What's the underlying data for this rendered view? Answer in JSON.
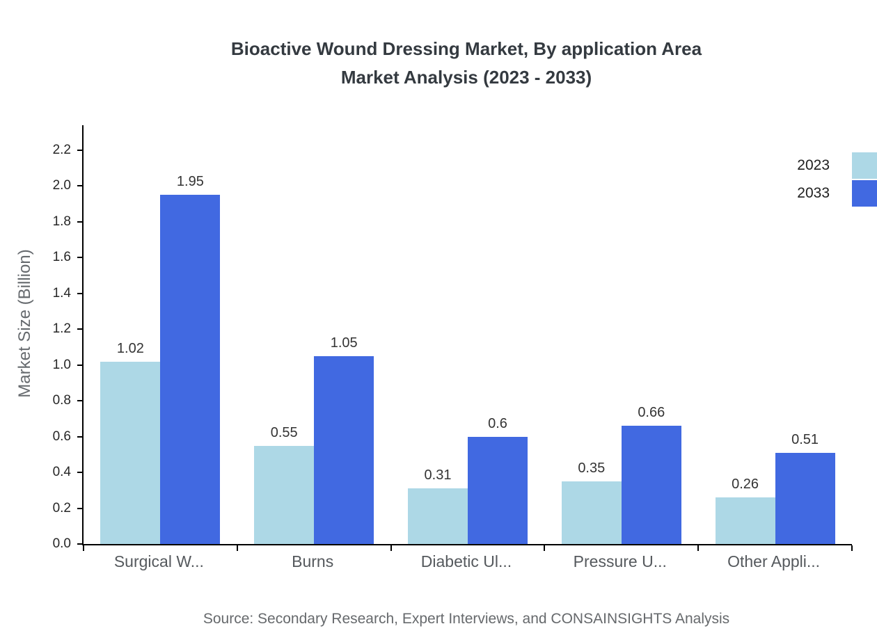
{
  "title": {
    "line1": "Bioactive Wound Dressing Market, By application Area",
    "line2": "Market Analysis (2023 - 2033)"
  },
  "source": "Source: Secondary Research, Expert Interviews, and CONSAINSIGHTS Analysis",
  "legend": [
    {
      "label": "2023",
      "color": "#ADD8E6"
    },
    {
      "label": "2033",
      "color": "#4169E1"
    }
  ],
  "chart_data": {
    "type": "bar",
    "title": "Bioactive Wound Dressing Market, By application Area Market Analysis (2023 - 2033)",
    "categories": [
      "Surgical W...",
      "Burns",
      "Diabetic Ul...",
      "Pressure U...",
      "Other Appli..."
    ],
    "series": [
      {
        "name": "2023",
        "color": "#ADD8E6",
        "values": [
          1.02,
          0.55,
          0.31,
          0.35,
          0.26
        ],
        "value_labels": [
          "1.02",
          "0.55",
          "0.31",
          "0.35",
          "0.26"
        ]
      },
      {
        "name": "2033",
        "color": "#4169E1",
        "values": [
          1.95,
          1.05,
          0.6,
          0.66,
          0.51
        ],
        "value_labels": [
          "1.95",
          "1.05",
          "0.6",
          "0.66",
          "0.51"
        ]
      }
    ],
    "xlabel": "",
    "ylabel": "Market Size (Billion)",
    "ylim": [
      0,
      2.34
    ],
    "yticks": [
      "0.0",
      "0.2",
      "0.4",
      "0.6",
      "0.8",
      "1.0",
      "1.2",
      "1.4",
      "1.6",
      "1.8",
      "2.0",
      "2.2"
    ],
    "grid": false,
    "legend_position": "top-right",
    "value_labels_shown": true
  }
}
